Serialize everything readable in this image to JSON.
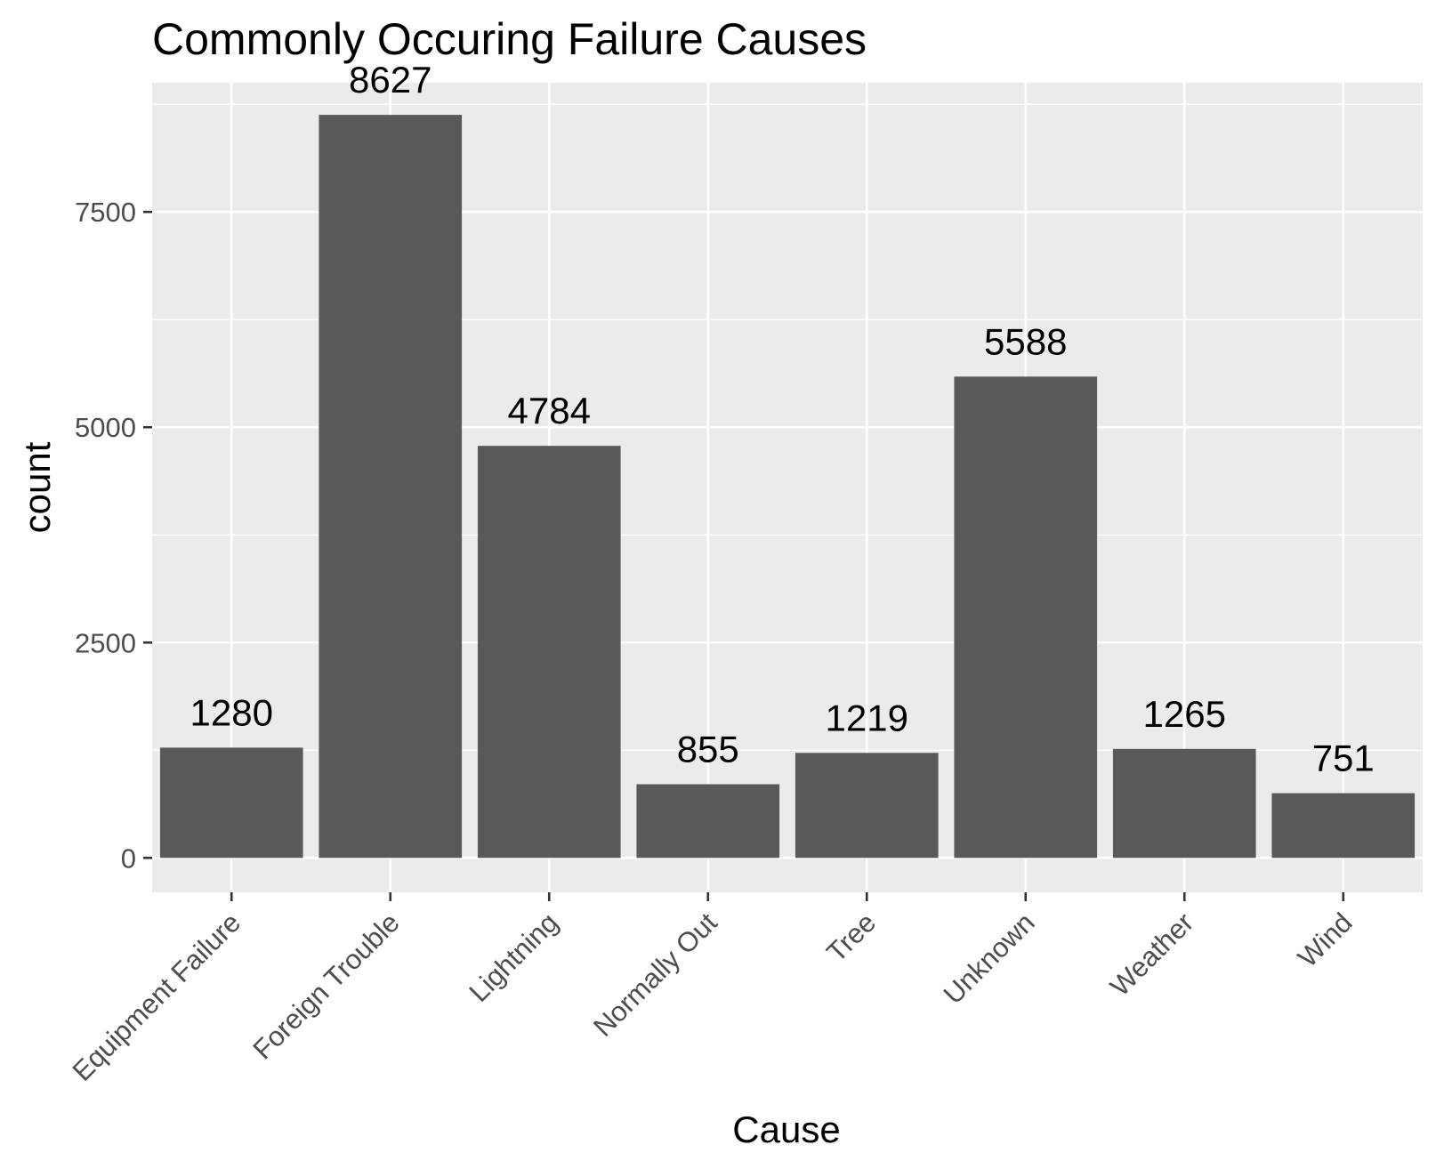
{
  "chart_data": {
    "type": "bar",
    "title": "Commonly Occuring Failure Causes",
    "xlabel": "Cause",
    "ylabel": "count",
    "categories": [
      "Equipment Failure",
      "Foreign Trouble",
      "Lightning",
      "Normally Out",
      "Tree",
      "Unknown",
      "Weather",
      "Wind"
    ],
    "values": [
      1280,
      8627,
      4784,
      855,
      1219,
      5588,
      1265,
      751
    ],
    "data_labels": [
      "1280",
      "8627",
      "4784",
      "855",
      "1219",
      "5588",
      "1265",
      "751"
    ],
    "yticks": [
      0,
      2500,
      5000,
      7500
    ],
    "ytick_labels": [
      "0",
      "2500",
      "5000",
      "7500"
    ],
    "ylim": [
      -400,
      9000
    ],
    "grid": true,
    "legend": "none",
    "colors": {
      "panel": "#ebebeb",
      "grid": "#ffffff",
      "bar": "#595959",
      "tick": "#333333",
      "tick_label": "#4d4d4d",
      "text": "#000000"
    }
  }
}
